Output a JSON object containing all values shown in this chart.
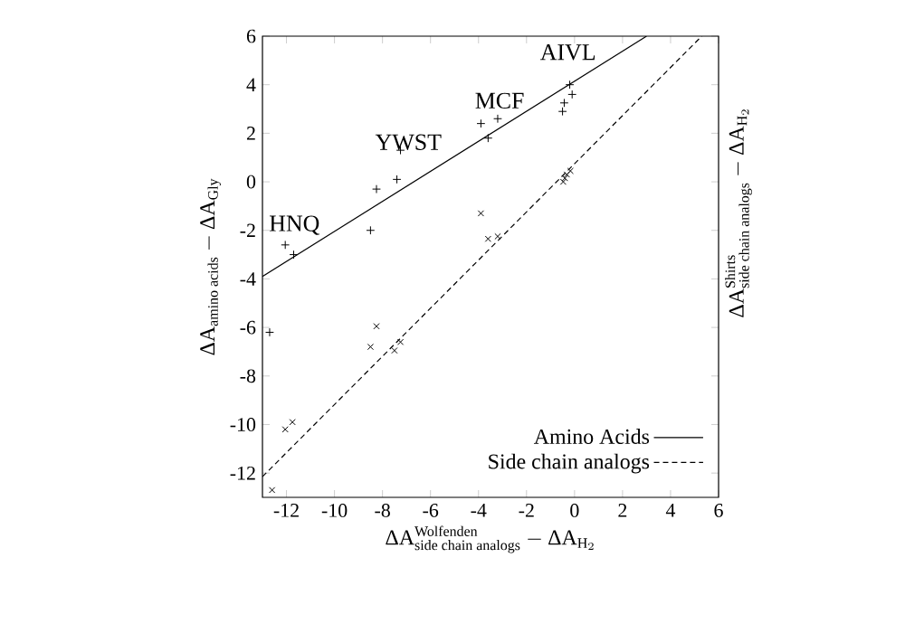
{
  "chart_data": {
    "type": "scatter",
    "xlabel": "\\text{ΔA}^{\\text{Wolfenden}}_{\\text{side chain analogs}} - \\text{ΔA}_{\\text{H}_{2}}",
    "ylabel": "\\text{ΔA}_{\\text{amino acids}} - \\text{ΔA}_{\\text{Gly}}",
    "y2label": "\\text{ΔA}^{\\text{Shirts}}_{\\text{side chain analogs}} - \\text{ΔA}_{\\text{H}_{2}}",
    "xlim": [
      -13,
      6
    ],
    "ylim": [
      -13,
      6
    ],
    "xticks": [
      -12,
      -10,
      -8,
      -6,
      -4,
      -2,
      0,
      2,
      4,
      6
    ],
    "yticks": [
      -12,
      -10,
      -8,
      -6,
      -4,
      -2,
      0,
      2,
      4,
      6
    ],
    "grid": false,
    "legend": "bottom right",
    "series": [
      {
        "name": "Amino Acids",
        "type": "line",
        "color": "#000000",
        "line_style": "solid",
        "marker": "none",
        "x": [
          -13,
          3
        ],
        "values": [
          -3.9,
          6
        ]
      },
      {
        "name": "Side chain analogs",
        "type": "line",
        "color": "#000000",
        "line_style": "dashed",
        "marker": "none",
        "x": [
          -13,
          5.3
        ],
        "values": [
          -12.15,
          6
        ]
      },
      {
        "color": "#000000",
        "marker": "plus",
        "x": [
          -12.7,
          -12.05,
          -11.7,
          -8.5,
          -8.25,
          -7.4,
          -7.25,
          -3.9,
          -3.6,
          -3.2,
          -0.5,
          -0.43,
          -0.2,
          -0.1
        ],
        "values": [
          -6.2,
          -2.6,
          -3.0,
          -2.0,
          -0.3,
          0.1,
          1.3,
          2.4,
          1.8,
          2.6,
          2.9,
          3.25,
          4.0,
          3.6
        ]
      },
      {
        "color": "#000000",
        "marker": "cross",
        "x": [
          -12.6,
          -12.05,
          -11.75,
          -8.5,
          -8.25,
          -7.5,
          -7.25,
          -3.9,
          -3.6,
          -3.2,
          -0.47,
          -0.4,
          -0.32,
          -0.17
        ],
        "values": [
          -12.7,
          -10.2,
          -9.9,
          -6.8,
          -5.95,
          -6.95,
          -6.6,
          -1.3,
          -2.35,
          -2.25,
          0.0,
          0.15,
          0.3,
          0.45
        ]
      }
    ],
    "annotations": [
      "HNQ",
      "YWST",
      "MCF",
      "AIVL"
    ]
  }
}
